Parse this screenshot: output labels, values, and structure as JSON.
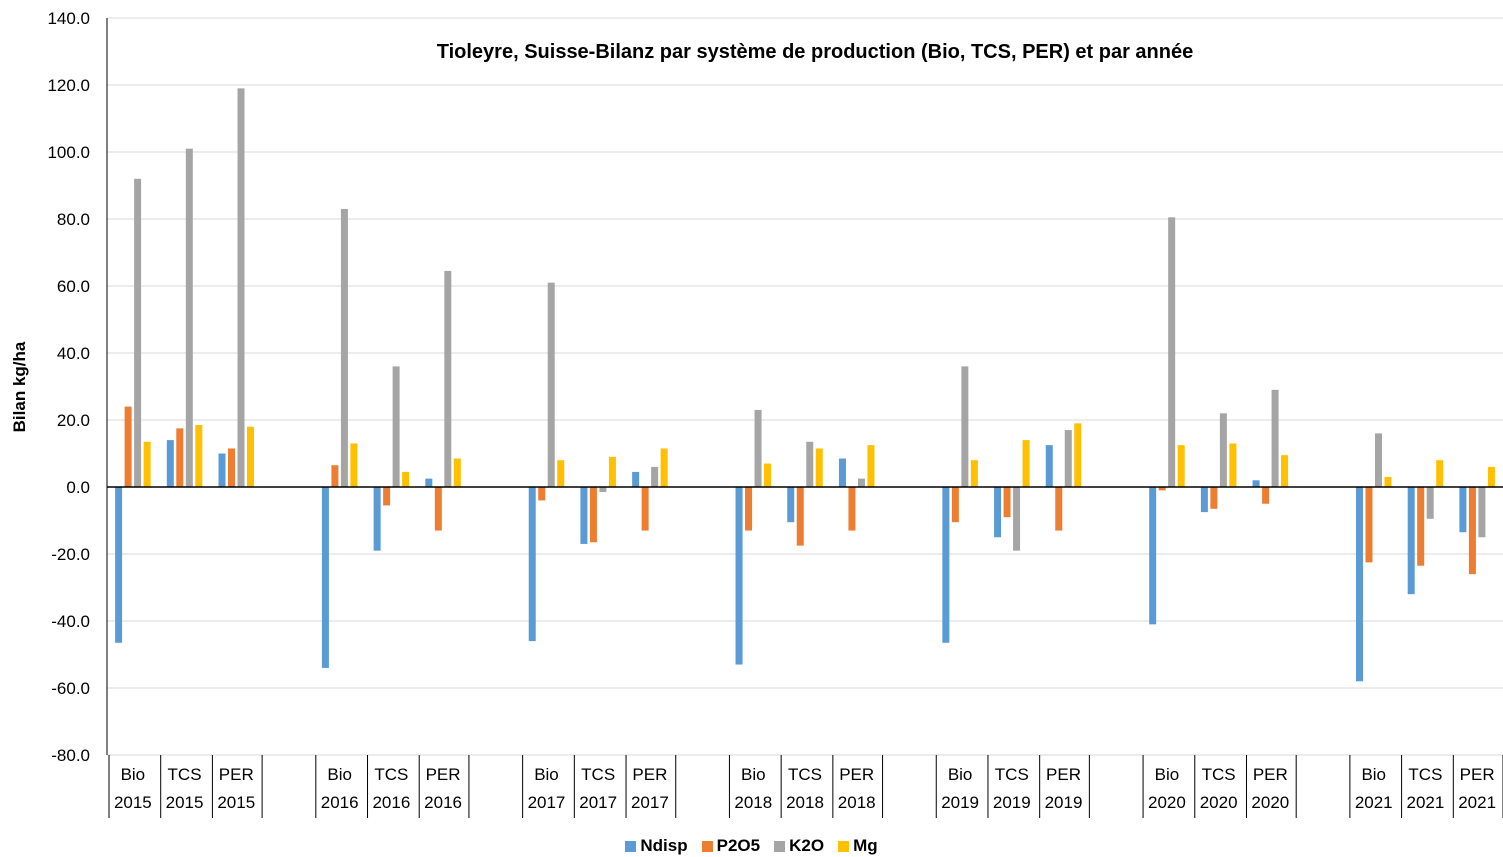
{
  "chart_data": {
    "type": "bar",
    "title": "Tioleyre, Suisse-Bilanz par système de production (Bio, TCS, PER) et par année",
    "y_label": "Bilan kg/ha",
    "categories": [
      "Bio 2015",
      "TCS 2015",
      "PER 2015",
      null,
      "Bio 2016",
      "TCS 2016",
      "PER 2016",
      null,
      "Bio 2017",
      "TCS 2017",
      "PER 2017",
      null,
      "Bio 2018",
      "TCS 2018",
      "PER 2018",
      null,
      "Bio 2019",
      "TCS 2019",
      "PER 2019",
      null,
      "Bio 2020",
      "TCS 2020",
      "PER 2020",
      null,
      "Bio 2021",
      "TCS 2021",
      "PER 2021"
    ],
    "series": [
      {
        "name": "Ndisp",
        "color": "#5b9bd5",
        "values": [
          -46.5,
          14,
          10,
          null,
          -54,
          -19,
          2.5,
          null,
          -46,
          -17,
          4.5,
          null,
          -53,
          -10.5,
          8.5,
          null,
          -46.5,
          -15,
          12.5,
          null,
          -41,
          -7.5,
          2,
          null,
          -58,
          -32,
          -13.5
        ]
      },
      {
        "name": "P2O5",
        "color": "#ed7d31",
        "values": [
          24,
          17.5,
          11.5,
          null,
          6.5,
          -5.5,
          -13,
          null,
          -4,
          -16.5,
          -13,
          null,
          -13,
          -17.5,
          -13,
          null,
          -10.5,
          -9,
          -13,
          null,
          -1,
          -6.5,
          -5,
          null,
          -22.5,
          -23.5,
          -26
        ]
      },
      {
        "name": "K2O",
        "color": "#a5a5a5",
        "values": [
          92,
          101,
          119,
          null,
          83,
          36,
          64.5,
          null,
          61,
          -1.5,
          6,
          null,
          23,
          13.5,
          2.5,
          null,
          36,
          -19,
          17,
          null,
          80.5,
          22,
          29,
          null,
          16,
          -9.5,
          -15
        ]
      },
      {
        "name": "Mg",
        "color": "#ffc000",
        "values": [
          13.5,
          18.5,
          18,
          null,
          13,
          4.5,
          8.5,
          null,
          8,
          9,
          11.5,
          null,
          7,
          11.5,
          12.5,
          null,
          8,
          14,
          19,
          null,
          12.5,
          13,
          9.5,
          null,
          3,
          8,
          6
        ]
      }
    ],
    "ylim": [
      -80,
      140
    ],
    "yticks": [
      {
        "value": -80,
        "label": "-80.0"
      },
      {
        "value": -60,
        "label": "-60.0"
      },
      {
        "value": -40,
        "label": "-40.0"
      },
      {
        "value": -20,
        "label": "-20.0"
      },
      {
        "value": 0,
        "label": "0.0"
      },
      {
        "value": 20,
        "label": "20.0"
      },
      {
        "value": 40,
        "label": "40.0"
      },
      {
        "value": 60,
        "label": "60.0"
      },
      {
        "value": 80,
        "label": "80.0"
      },
      {
        "value": 100,
        "label": "100.0"
      },
      {
        "value": 120,
        "label": "120.0"
      },
      {
        "value": 140,
        "label": "140.0"
      }
    ],
    "grid": true,
    "legend": "bottom"
  }
}
